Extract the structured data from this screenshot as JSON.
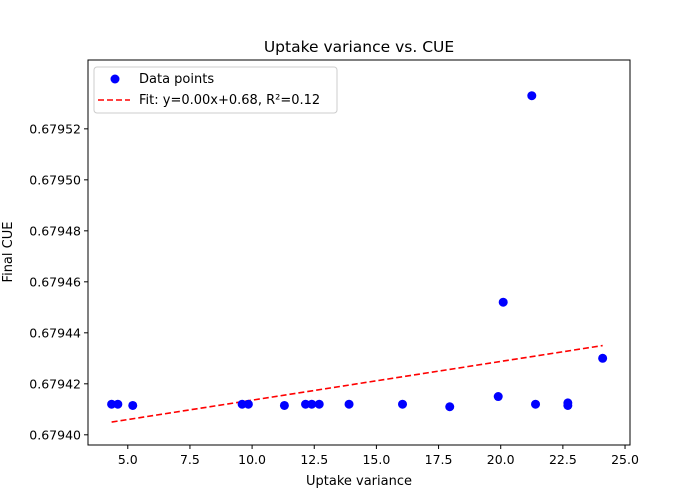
{
  "chart_data": {
    "type": "scatter",
    "title": "Uptake variance vs. CUE",
    "xlabel": "Uptake variance",
    "ylabel": "Final CUE",
    "xlim": [
      3.4,
      25.2
    ],
    "ylim": [
      0.679396,
      0.679547
    ],
    "x_ticks": [
      5.0,
      7.5,
      10.0,
      12.5,
      15.0,
      17.5,
      20.0,
      22.5,
      25.0
    ],
    "x_tick_labels": [
      "5.0",
      "7.5",
      "10.0",
      "12.5",
      "15.0",
      "17.5",
      "20.0",
      "22.5",
      "25.0"
    ],
    "y_ticks": [
      0.6794,
      0.67942,
      0.67944,
      0.67946,
      0.67948,
      0.6795,
      0.67952
    ],
    "y_tick_labels": [
      "0.67940",
      "0.67942",
      "0.67944",
      "0.67946",
      "0.67948",
      "0.67950",
      "0.67952"
    ],
    "grid": false,
    "legend_position": "top-left",
    "series": [
      {
        "name": "Data points",
        "kind": "scatter",
        "color": "#0000ff",
        "points": [
          {
            "x": 4.35,
            "y": 0.679412
          },
          {
            "x": 4.6,
            "y": 0.679412
          },
          {
            "x": 5.2,
            "y": 0.6794115
          },
          {
            "x": 9.6,
            "y": 0.679412
          },
          {
            "x": 9.85,
            "y": 0.679412
          },
          {
            "x": 11.3,
            "y": 0.6794115
          },
          {
            "x": 12.15,
            "y": 0.679412
          },
          {
            "x": 12.4,
            "y": 0.679412
          },
          {
            "x": 12.7,
            "y": 0.679412
          },
          {
            "x": 13.9,
            "y": 0.679412
          },
          {
            "x": 16.05,
            "y": 0.679412
          },
          {
            "x": 17.95,
            "y": 0.679411
          },
          {
            "x": 19.9,
            "y": 0.679415
          },
          {
            "x": 20.1,
            "y": 0.679452
          },
          {
            "x": 21.25,
            "y": 0.679533
          },
          {
            "x": 21.4,
            "y": 0.679412
          },
          {
            "x": 22.7,
            "y": 0.6794125
          },
          {
            "x": 22.7,
            "y": 0.6794115
          },
          {
            "x": 24.1,
            "y": 0.67943
          }
        ]
      },
      {
        "name": "Fit: y=0.00x+0.68, R²=0.12",
        "kind": "line",
        "style": "dashed",
        "color": "#ff0000",
        "points": [
          {
            "x": 4.35,
            "y": 0.679405
          },
          {
            "x": 24.1,
            "y": 0.679435
          }
        ]
      }
    ]
  }
}
